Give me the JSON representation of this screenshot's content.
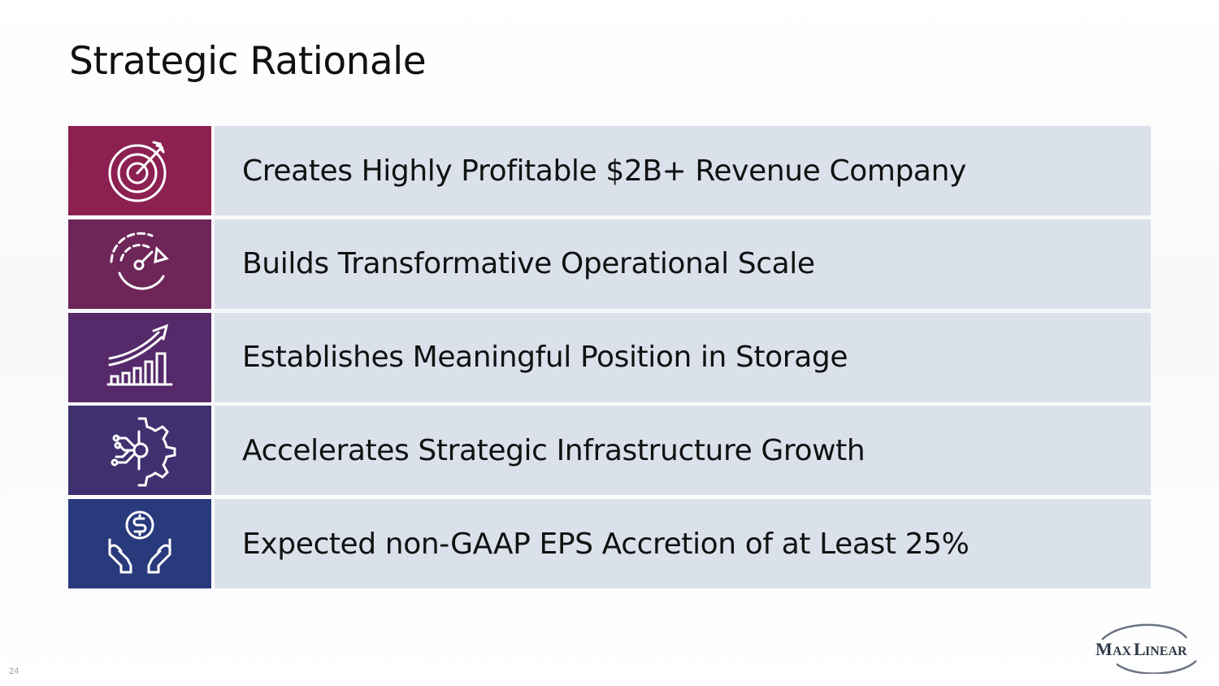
{
  "title": "Strategic Rationale",
  "rows": [
    {
      "text": "Creates Highly Profitable $2B+ Revenue Company",
      "icon": "target-icon",
      "color": "#8c2051"
    },
    {
      "text": "Builds Transformative Operational Scale",
      "icon": "speedometer-icon",
      "color": "#6e2558"
    },
    {
      "text": "Establishes Meaningful Position in Storage",
      "icon": "growth-chart-icon",
      "color": "#55296a"
    },
    {
      "text": "Accelerates Strategic Infrastructure Growth",
      "icon": "gear-circuit-icon",
      "color": "#3f306f"
    },
    {
      "text": "Expected non-GAAP EPS Accretion of at Least 25%",
      "icon": "hands-dollar-icon",
      "color": "#283a7c"
    }
  ],
  "page_number": "24",
  "logo": {
    "text": "MaxLinear"
  }
}
